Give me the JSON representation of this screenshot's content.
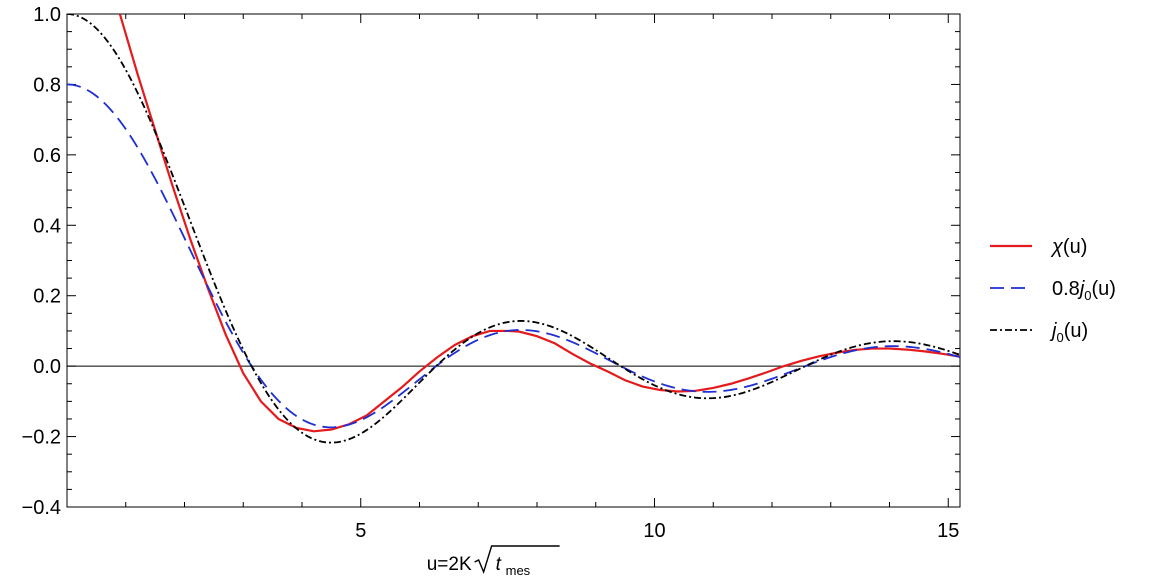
{
  "chart_data": {
    "type": "line",
    "title": "",
    "xlabel": {
      "prefix": "u=2K",
      "var": "t",
      "sub": "mes"
    },
    "ylabel": "",
    "xlim": [
      0,
      15.2
    ],
    "ylim": [
      -0.4,
      1.0
    ],
    "grid": false,
    "zero_line": true,
    "x_ticks": [
      5,
      10,
      15
    ],
    "x_tick_labels": [
      "5",
      "10",
      "15"
    ],
    "y_ticks": [
      -0.4,
      -0.2,
      0.0,
      0.2,
      0.4,
      0.6,
      0.8,
      1.0
    ],
    "y_tick_labels": [
      "−0.4",
      "−0.2",
      "0.0",
      "0.2",
      "0.4",
      "0.6",
      "0.8",
      "1.0"
    ],
    "legend_position": "right",
    "series": [
      {
        "name": "χ(u)",
        "legend": {
          "pre": "",
          "italic": "χ",
          "sub": "",
          "post": "(u)"
        },
        "color": "#e41a1c",
        "dash": "solid",
        "x": [
          0.9,
          1.2,
          1.5,
          1.8,
          2.1,
          2.4,
          2.7,
          3.0,
          3.3,
          3.6,
          3.9,
          4.2,
          4.5,
          4.8,
          5.1,
          5.4,
          5.7,
          6.0,
          6.3,
          6.6,
          6.9,
          7.2,
          7.5,
          7.7,
          8.0,
          8.3,
          8.6,
          8.9,
          9.2,
          9.5,
          9.8,
          10.1,
          10.4,
          10.7,
          11.0,
          11.3,
          11.6,
          11.9,
          12.2,
          12.5,
          12.8,
          13.1,
          13.4,
          13.7,
          14.0,
          14.3,
          14.6,
          14.9,
          15.2
        ],
        "y": [
          1.0,
          0.83,
          0.67,
          0.51,
          0.36,
          0.22,
          0.09,
          -0.02,
          -0.1,
          -0.15,
          -0.175,
          -0.185,
          -0.18,
          -0.165,
          -0.14,
          -0.1,
          -0.06,
          -0.015,
          0.025,
          0.06,
          0.085,
          0.1,
          0.1,
          0.098,
          0.085,
          0.065,
          0.035,
          0.008,
          -0.015,
          -0.04,
          -0.058,
          -0.068,
          -0.072,
          -0.07,
          -0.062,
          -0.05,
          -0.035,
          -0.018,
          0.0,
          0.015,
          0.028,
          0.038,
          0.046,
          0.05,
          0.05,
          0.047,
          0.042,
          0.035,
          0.027
        ]
      },
      {
        "name": "0.8j₀(u)",
        "legend": {
          "pre": "0.8",
          "italic": "j",
          "sub": "0",
          "post": "(u)"
        },
        "color": "#1f2fd1",
        "dash": "dashed",
        "formula_scale": 0.8
      },
      {
        "name": "j₀(u)",
        "legend": {
          "pre": "",
          "italic": "j",
          "sub": "0",
          "post": "(u)"
        },
        "color": "#000000",
        "dash": "dashdot",
        "formula_scale": 1.0
      }
    ]
  }
}
